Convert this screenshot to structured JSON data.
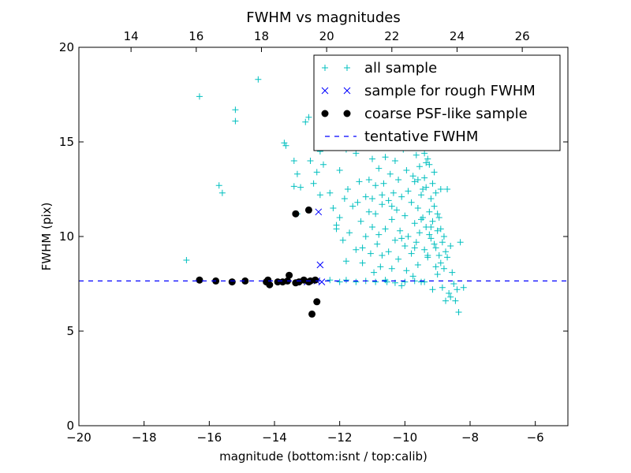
{
  "chart_data": {
    "type": "scatter",
    "title": "FWHM vs magnitudes",
    "xlabel": "magnitude (bottom:isnt / top:calib)",
    "ylabel": "FWHM (pix)",
    "xlim": [
      -20,
      -5
    ],
    "ylim": [
      0,
      20
    ],
    "x_ticks": [
      -20,
      -18,
      -16,
      -14,
      -12,
      -10,
      -8,
      -6
    ],
    "x_tick_labels": [
      "−20",
      "−18",
      "−16",
      "−14",
      "−12",
      "−10",
      "−8",
      "−6"
    ],
    "y_ticks": [
      0,
      5,
      10,
      15,
      20
    ],
    "y_tick_labels": [
      "0",
      "5",
      "10",
      "15",
      "20"
    ],
    "top_axis": {
      "ticks": [
        14,
        16,
        18,
        20,
        22,
        24,
        26
      ],
      "tick_labels": [
        "14",
        "16",
        "18",
        "20",
        "22",
        "24",
        "26"
      ],
      "offset": 32.4
    },
    "grid": false,
    "legend_position": "top-right",
    "series": [
      {
        "name": "all sample",
        "marker": "plus",
        "color": "#00bfbf",
        "points": [
          [
            -16.7,
            8.75
          ],
          [
            -16.3,
            17.4
          ],
          [
            -15.7,
            12.7
          ],
          [
            -15.6,
            12.3
          ],
          [
            -15.2,
            16.7
          ],
          [
            -15.2,
            16.1
          ],
          [
            -14.5,
            18.3
          ],
          [
            -13.7,
            14.95
          ],
          [
            -13.65,
            14.8
          ],
          [
            -13.4,
            14.0
          ],
          [
            -13.4,
            12.65
          ],
          [
            -13.3,
            13.3
          ],
          [
            -13.3,
            11.2
          ],
          [
            -13.2,
            12.6
          ],
          [
            -13.05,
            16.05
          ],
          [
            -12.95,
            16.3
          ],
          [
            -12.9,
            14.0
          ],
          [
            -12.8,
            12.8
          ],
          [
            -12.7,
            13.4
          ],
          [
            -12.6,
            14.5
          ],
          [
            -12.6,
            12.2
          ],
          [
            -12.5,
            13.8
          ],
          [
            -12.4,
            15.0
          ],
          [
            -12.3,
            12.3
          ],
          [
            -12.2,
            11.5
          ],
          [
            -12.1,
            10.6
          ],
          [
            -12.1,
            10.4
          ],
          [
            -12.0,
            13.5
          ],
          [
            -12.0,
            11.0
          ],
          [
            -11.9,
            15.3
          ],
          [
            -11.9,
            9.8
          ],
          [
            -11.85,
            12.0
          ],
          [
            -11.8,
            14.6
          ],
          [
            -11.8,
            8.7
          ],
          [
            -11.75,
            12.5
          ],
          [
            -11.7,
            10.2
          ],
          [
            -11.6,
            11.6
          ],
          [
            -11.5,
            14.4
          ],
          [
            -11.5,
            9.3
          ],
          [
            -11.45,
            11.8
          ],
          [
            -11.4,
            12.9
          ],
          [
            -11.35,
            10.8
          ],
          [
            -11.3,
            8.6
          ],
          [
            -11.2,
            12.1
          ],
          [
            -11.2,
            10.0
          ],
          [
            -11.1,
            13.0
          ],
          [
            -11.1,
            11.3
          ],
          [
            -11.05,
            9.1
          ],
          [
            -11.0,
            14.1
          ],
          [
            -11.0,
            10.5
          ],
          [
            -10.95,
            8.1
          ],
          [
            -10.9,
            12.7
          ],
          [
            -10.9,
            11.2
          ],
          [
            -10.85,
            9.6
          ],
          [
            -10.8,
            13.6
          ],
          [
            -10.8,
            10.1
          ],
          [
            -10.75,
            8.4
          ],
          [
            -10.7,
            11.7
          ],
          [
            -10.7,
            9.0
          ],
          [
            -10.65,
            12.8
          ],
          [
            -10.6,
            14.2
          ],
          [
            -10.6,
            10.4
          ],
          [
            -10.55,
            7.6
          ],
          [
            -10.5,
            11.9
          ],
          [
            -10.5,
            9.2
          ],
          [
            -10.45,
            13.3
          ],
          [
            -10.4,
            10.9
          ],
          [
            -10.4,
            8.3
          ],
          [
            -10.35,
            12.3
          ],
          [
            -10.3,
            14.0
          ],
          [
            -10.3,
            9.8
          ],
          [
            -10.25,
            11.4
          ],
          [
            -10.2,
            13.0
          ],
          [
            -10.2,
            8.8
          ],
          [
            -10.15,
            10.3
          ],
          [
            -10.1,
            12.1
          ],
          [
            -10.1,
            7.4
          ],
          [
            -10.05,
            14.6
          ],
          [
            -10.0,
            11.1
          ],
          [
            -10.0,
            9.5
          ],
          [
            -9.95,
            13.5
          ],
          [
            -9.95,
            8.2
          ],
          [
            -9.9,
            12.4
          ],
          [
            -9.9,
            10.0
          ],
          [
            -9.85,
            14.9
          ],
          [
            -9.8,
            11.8
          ],
          [
            -9.8,
            9.1
          ],
          [
            -9.75,
            13.2
          ],
          [
            -9.75,
            7.9
          ],
          [
            -9.7,
            10.7
          ],
          [
            -9.7,
            12.9
          ],
          [
            -9.65,
            14.3
          ],
          [
            -9.65,
            9.7
          ],
          [
            -9.6,
            11.5
          ],
          [
            -9.6,
            8.5
          ],
          [
            -9.55,
            13.7
          ],
          [
            -9.55,
            10.2
          ],
          [
            -9.5,
            12.2
          ],
          [
            -9.5,
            7.6
          ],
          [
            -9.45,
            14.7
          ],
          [
            -9.45,
            11.0
          ],
          [
            -9.4,
            9.3
          ],
          [
            -9.4,
            13.1
          ],
          [
            -9.35,
            10.5
          ],
          [
            -9.35,
            12.6
          ],
          [
            -9.3,
            14.1
          ],
          [
            -9.3,
            8.9
          ],
          [
            -9.25,
            11.3
          ],
          [
            -9.25,
            13.8
          ],
          [
            -9.2,
            9.9
          ],
          [
            -9.2,
            12.0
          ],
          [
            -9.15,
            10.8
          ],
          [
            -9.15,
            7.2
          ],
          [
            -9.1,
            13.4
          ],
          [
            -9.1,
            11.6
          ],
          [
            -9.05,
            9.4
          ],
          [
            -9.05,
            12.3
          ],
          [
            -9.0,
            10.3
          ],
          [
            -9.0,
            8.0
          ],
          [
            -8.95,
            11.0
          ],
          [
            -8.95,
            9.0
          ],
          [
            -8.9,
            12.5
          ],
          [
            -8.9,
            8.6
          ],
          [
            -8.85,
            9.7
          ],
          [
            -8.85,
            7.3
          ],
          [
            -8.8,
            10.0
          ],
          [
            -8.8,
            8.3
          ],
          [
            -8.75,
            9.2
          ],
          [
            -8.75,
            6.6
          ],
          [
            -8.7,
            12.5
          ],
          [
            -8.7,
            8.9
          ],
          [
            -8.65,
            7.0
          ],
          [
            -8.6,
            9.5
          ],
          [
            -8.6,
            6.8
          ],
          [
            -8.55,
            8.1
          ],
          [
            -8.5,
            7.5
          ],
          [
            -8.45,
            6.6
          ],
          [
            -8.4,
            7.2
          ],
          [
            -8.35,
            6.0
          ],
          [
            -8.3,
            9.7
          ],
          [
            -8.2,
            7.3
          ],
          [
            -9.6,
            15.0
          ],
          [
            -9.8,
            15.2
          ],
          [
            -10.2,
            15.1
          ],
          [
            -9.4,
            14.4
          ],
          [
            -12.0,
            7.6
          ],
          [
            -11.8,
            7.7
          ],
          [
            -11.5,
            7.6
          ],
          [
            -11.2,
            7.65
          ],
          [
            -10.9,
            7.6
          ],
          [
            -10.6,
            7.7
          ],
          [
            -10.3,
            7.55
          ],
          [
            -10.0,
            7.6
          ],
          [
            -9.7,
            7.65
          ],
          [
            -9.4,
            7.6
          ],
          [
            -12.3,
            7.7
          ],
          [
            -9.3,
            9.0
          ],
          [
            -9.1,
            9.6
          ],
          [
            -9.2,
            10.5
          ],
          [
            -9.0,
            11.2
          ],
          [
            -8.9,
            10.4
          ],
          [
            -9.05,
            8.4
          ],
          [
            -9.5,
            10.9
          ],
          [
            -9.7,
            9.4
          ],
          [
            -10.1,
            9.9
          ],
          [
            -10.4,
            11.6
          ],
          [
            -10.7,
            12.2
          ],
          [
            -11.0,
            12.0
          ],
          [
            -11.3,
            9.4
          ],
          [
            -9.6,
            13.0
          ],
          [
            -9.35,
            13.9
          ],
          [
            -9.15,
            12.8
          ],
          [
            -9.45,
            12.5
          ],
          [
            -9.25,
            10.1
          ]
        ]
      },
      {
        "name": "sample for rough FWHM",
        "marker": "x",
        "color": "#0000ff",
        "points": [
          [
            -12.65,
            11.3
          ],
          [
            -12.6,
            8.5
          ],
          [
            -12.55,
            7.6
          ],
          [
            -12.7,
            7.65
          ],
          [
            -13.0,
            7.6
          ]
        ]
      },
      {
        "name": "coarse PSF-like sample",
        "marker": "circle",
        "color": "#000000",
        "points": [
          [
            -16.3,
            7.7
          ],
          [
            -15.8,
            7.65
          ],
          [
            -15.3,
            7.6
          ],
          [
            -14.9,
            7.65
          ],
          [
            -14.25,
            7.6
          ],
          [
            -14.2,
            7.7
          ],
          [
            -14.15,
            7.45
          ],
          [
            -13.9,
            7.6
          ],
          [
            -13.75,
            7.6
          ],
          [
            -13.6,
            7.65
          ],
          [
            -13.55,
            7.95
          ],
          [
            -13.35,
            7.55
          ],
          [
            -13.25,
            7.6
          ],
          [
            -13.1,
            7.7
          ],
          [
            -12.95,
            7.6
          ],
          [
            -12.9,
            7.65
          ],
          [
            -12.75,
            7.7
          ],
          [
            -13.35,
            11.2
          ],
          [
            -12.95,
            11.4
          ],
          [
            -12.7,
            6.55
          ],
          [
            -12.85,
            5.9
          ]
        ]
      },
      {
        "name": "tentative FWHM",
        "marker": "dashed-line",
        "color": "#0000ff",
        "value": 7.65
      }
    ]
  }
}
